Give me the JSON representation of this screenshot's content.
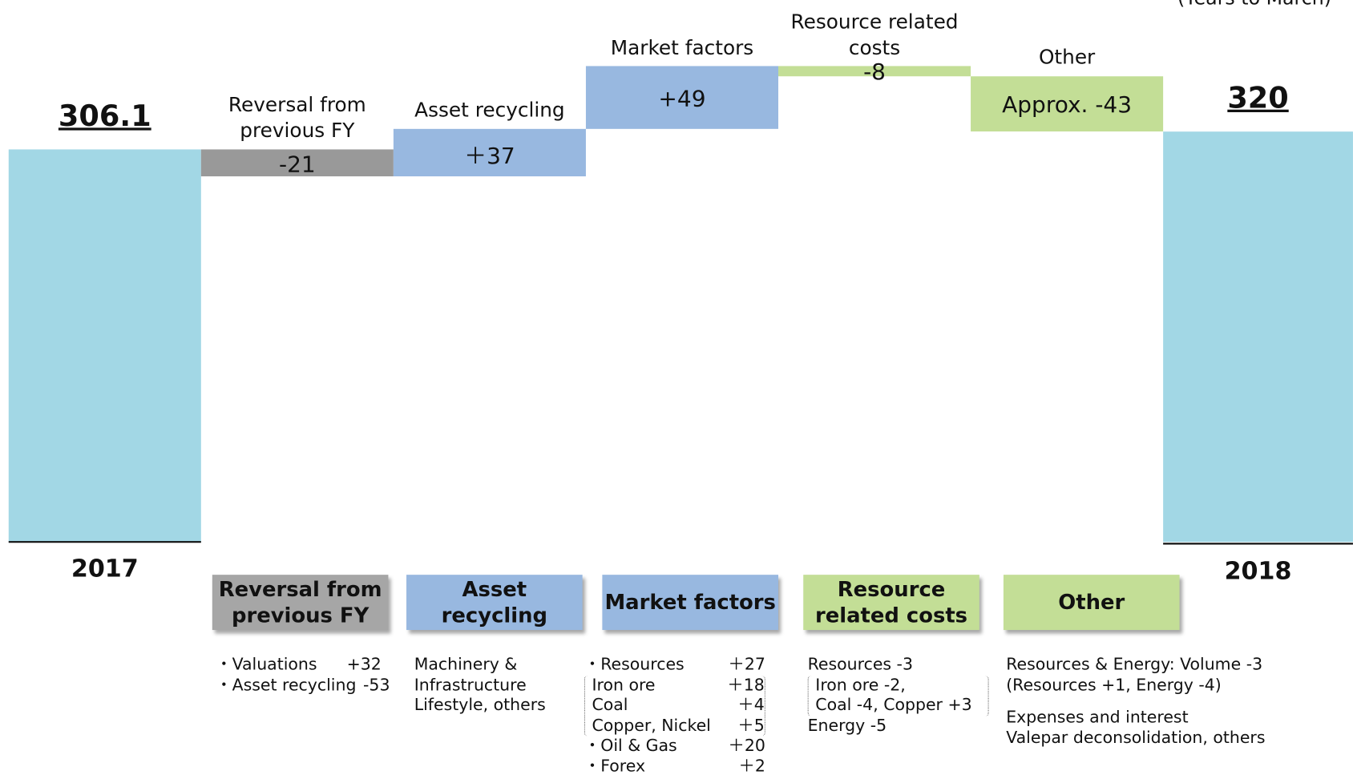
{
  "chart_data": {
    "type": "waterfall",
    "note": "(Years to March)",
    "categories": [
      "2017",
      "Reversal from previous FY",
      "Asset recycling",
      "Market factors",
      "Resource related costs",
      "Other",
      "2018"
    ],
    "values": [
      306.1,
      -21,
      37,
      49,
      -8,
      -43,
      320
    ],
    "value_labels": [
      "306.1",
      "-21",
      "＋37",
      "+49",
      "-8",
      "Approx. -43",
      "320"
    ],
    "colors": [
      "#a2d7e5",
      "#999999",
      "#98b8e0",
      "#98b8e0",
      "#c3de96",
      "#c3de96",
      "#a2d7e5"
    ],
    "notes": [
      [],
      [
        [
          [
            "・Valuations",
            "+32"
          ],
          [
            "・Asset recycling",
            "-53"
          ]
        ]
      ],
      [
        [
          [
            "Machinery &"
          ],
          [
            "Infrastructure"
          ],
          [
            "Lifestyle, others"
          ]
        ]
      ],
      [
        [
          [
            "・Resources",
            "＋27"
          ]
        ],
        [
          [
            "Iron ore",
            "＋18"
          ],
          [
            "Coal",
            "＋4"
          ],
          [
            "Copper, Nickel",
            "＋5"
          ]
        ],
        [
          [
            "・Oil & Gas",
            "＋20"
          ],
          [
            "・Forex",
            "＋2"
          ]
        ]
      ],
      [
        [
          [
            "Resources -3"
          ]
        ],
        [
          [
            "Iron ore -2,"
          ],
          [
            "Coal -4, Copper +3"
          ]
        ],
        [
          [
            "Energy -5"
          ]
        ]
      ],
      [
        [
          [
            "Resources & Energy: Volume -3"
          ],
          [
            "(Resources +1, Energy -4)"
          ]
        ],
        [
          [
            "Expenses and interest"
          ],
          [
            "Valepar deconsolidation, others"
          ]
        ]
      ],
      []
    ]
  }
}
